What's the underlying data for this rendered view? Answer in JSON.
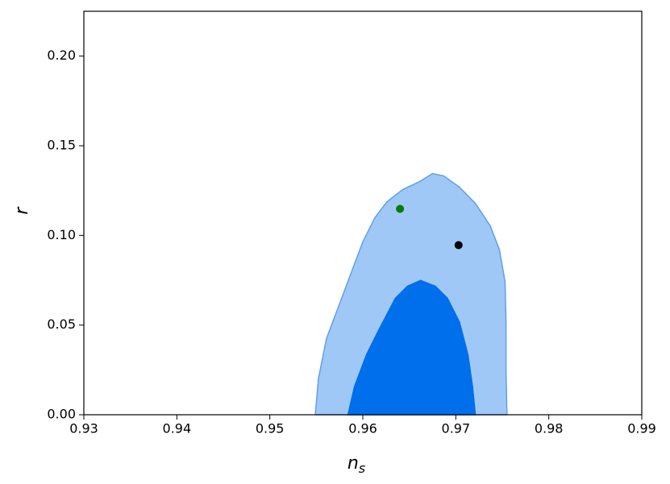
{
  "chart_data": {
    "type": "contour",
    "xlabel": {
      "text": "n",
      "subscript": "s"
    },
    "ylabel": "r",
    "xlim": [
      0.93,
      0.99
    ],
    "ylim": [
      0,
      0.225
    ],
    "xticks": [
      0.93,
      0.94,
      0.95,
      0.96,
      0.97,
      0.98,
      0.99
    ],
    "yticks": [
      {
        "value": 0,
        "label": "0.00"
      },
      0.05,
      {
        "value": 0.1,
        "label": "0.10"
      },
      0.15,
      {
        "value": 0.2,
        "label": "0.20"
      }
    ],
    "grid": false,
    "regions": [
      {
        "color": "#a0c8f6",
        "edge": "#5ea0ea",
        "x": [
          0.95489,
          0.95523,
          0.9561,
          0.9574,
          0.9587,
          0.96,
          0.9613,
          0.9626,
          0.9643,
          0.9661,
          0.9675,
          0.9687,
          0.9704,
          0.9721,
          0.9737,
          0.9747,
          0.9753,
          0.9754,
          0.9754,
          0.9755
        ],
        "y": [
          0,
          0.0202,
          0.0426,
          0.0605,
          0.0785,
          0.0964,
          0.1099,
          0.1188,
          0.1256,
          0.13,
          0.1345,
          0.1332,
          0.1269,
          0.1179,
          0.1054,
          0.0919,
          0.074,
          0.0516,
          0.0247,
          0
        ]
      },
      {
        "color": "#006fec",
        "edge": "#006fec",
        "x": [
          0.9584,
          0.9591,
          0.9604,
          0.9617,
          0.9635,
          0.9648,
          0.9662,
          0.9678,
          0.9691,
          0.9704,
          0.9713,
          0.9718,
          0.9721
        ],
        "y": [
          0,
          0.0157,
          0.0336,
          0.0471,
          0.065,
          0.0717,
          0.0749,
          0.0717,
          0.065,
          0.0516,
          0.0336,
          0.0157,
          0
        ]
      }
    ],
    "points": [
      {
        "x": 0.964,
        "y": 0.1148,
        "color": "#008000"
      },
      {
        "x": 0.9703,
        "y": 0.0946,
        "color": "#000000"
      }
    ]
  }
}
